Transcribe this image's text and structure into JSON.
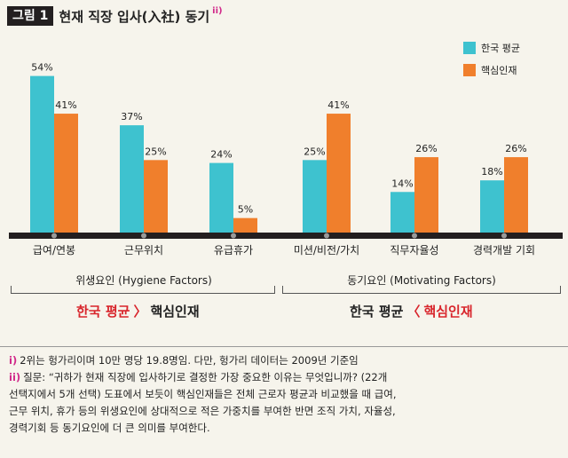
{
  "figure": {
    "badge": "그림 1",
    "title": "현재 직장 입사(入社) 동기",
    "title_sup": "ii)"
  },
  "chart_data": {
    "type": "bar",
    "categories": [
      "급여/연봉",
      "근무위치",
      "유급휴가",
      "미션/비전/가치",
      "직무자율성",
      "경력개발 기회"
    ],
    "series": [
      {
        "name": "한국 평균",
        "color": "#3ec2cf",
        "values": [
          54,
          37,
          24,
          25,
          14,
          18
        ]
      },
      {
        "name": "핵심인재",
        "color": "#f07f2c",
        "values": [
          41,
          25,
          5,
          41,
          26,
          26
        ]
      }
    ],
    "value_suffix": "%",
    "ylim": [
      0,
      60
    ],
    "grid": false,
    "legend_position": "top-right",
    "groups": [
      {
        "label": "위생요인 (Hygiene Factors)",
        "categories": [
          0,
          1,
          2
        ]
      },
      {
        "label": "동기요인 (Motivating Factors)",
        "categories": [
          3,
          4,
          5
        ]
      }
    ]
  },
  "comparisons": [
    {
      "left": "한국 평균",
      "symbol": "〉",
      "right": "핵심인재"
    },
    {
      "left": "한국 평균",
      "symbol": "〈",
      "right": "핵심인재"
    }
  ],
  "notes": [
    {
      "mark": "i)",
      "text": "2위는 헝가리이며 10만 명당 19.8명임. 다만, 헝가리 데이터는 2009년 기준임"
    },
    {
      "mark": "ii)",
      "text": "질문: “귀하가 현재 직장에 입사하기로 결정한 가장 중요한 이유는 무엇입니까? (22개"
    },
    {
      "mark": "",
      "text": "선택지에서 5개 선택) 도표에서 보듯이 핵심인재들은 전체 근로자 평균과 비교했을 때 급여,"
    },
    {
      "mark": "",
      "text": "근무 위치, 휴가 등의 위생요인에 상대적으로 적은 가중치를 부여한 반면 조직 가치, 자율성,"
    },
    {
      "mark": "",
      "text": "경력기회 등 동기요인에 더 큰 의미를 부여한다."
    }
  ]
}
